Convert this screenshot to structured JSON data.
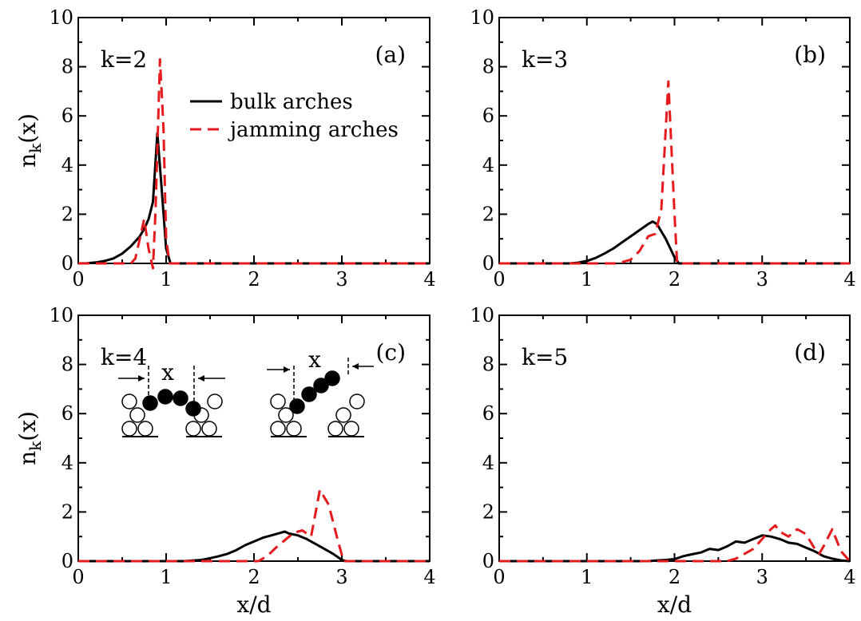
{
  "colors": {
    "bulk": "#000000",
    "jamming": "#e41a1c"
  },
  "legend": {
    "bulk": "bulk arches",
    "jamming": "jamming arches"
  },
  "inset": {
    "x_label_left": "x",
    "x_label_right": "x"
  },
  "chart_data": [
    {
      "type": "line",
      "panel": "(a)",
      "k_label": "k=2",
      "xlabel": "",
      "ylabel": "n_k(x)",
      "xlim": [
        0,
        4
      ],
      "ylim": [
        0,
        10
      ],
      "xticks": [
        "0",
        "1",
        "2",
        "3",
        "4"
      ],
      "yticks": [
        "0",
        "2",
        "4",
        "6",
        "8",
        "10"
      ],
      "series": [
        {
          "name": "bulk arches",
          "style": "solid",
          "x": [
            0,
            0.1,
            0.2,
            0.3,
            0.4,
            0.5,
            0.6,
            0.7,
            0.75,
            0.8,
            0.85,
            0.9,
            0.95,
            1.0,
            1.05,
            1.5,
            2.0,
            2.5,
            3.0,
            3.5,
            4.0
          ],
          "y": [
            0,
            0.01,
            0.04,
            0.1,
            0.2,
            0.4,
            0.7,
            1.1,
            1.4,
            1.8,
            2.5,
            5.3,
            3.0,
            0.6,
            0,
            0,
            0,
            0,
            0,
            0,
            0
          ]
        },
        {
          "name": "jamming arches",
          "style": "dashed",
          "x": [
            0,
            0.6,
            0.65,
            0.7,
            0.75,
            0.8,
            0.85,
            0.88,
            0.93,
            0.97,
            1.0,
            1.04,
            1.5,
            2.0,
            2.5,
            3.0,
            3.5,
            4.0
          ],
          "y": [
            0,
            0,
            0.2,
            1.0,
            1.8,
            0.6,
            -0.2,
            2.2,
            8.3,
            5.5,
            1.0,
            0,
            0,
            0,
            0,
            0,
            0,
            0
          ]
        }
      ]
    },
    {
      "type": "line",
      "panel": "(b)",
      "k_label": "k=3",
      "xlabel": "",
      "ylabel": "",
      "xlim": [
        0,
        4
      ],
      "ylim": [
        0,
        10
      ],
      "xticks": [
        "0",
        "1",
        "2",
        "3",
        "4"
      ],
      "yticks": [
        "0",
        "2",
        "4",
        "6",
        "8",
        "10"
      ],
      "series": [
        {
          "name": "bulk arches",
          "style": "solid",
          "x": [
            0,
            0.8,
            0.9,
            1.0,
            1.1,
            1.2,
            1.3,
            1.4,
            1.5,
            1.6,
            1.7,
            1.75,
            1.8,
            1.9,
            2.0,
            2.05,
            2.5,
            3.0,
            3.5,
            4.0
          ],
          "y": [
            0,
            0,
            0.03,
            0.1,
            0.22,
            0.4,
            0.6,
            0.85,
            1.1,
            1.35,
            1.6,
            1.7,
            1.6,
            1.0,
            0.25,
            0,
            0,
            0,
            0,
            0
          ]
        },
        {
          "name": "jamming arches",
          "style": "dashed",
          "x": [
            0,
            1.35,
            1.5,
            1.6,
            1.7,
            1.78,
            1.85,
            1.93,
            2.0,
            2.03,
            2.5,
            3.0,
            3.5,
            4.0
          ],
          "y": [
            0,
            0,
            0.15,
            0.5,
            1.1,
            1.2,
            2.2,
            7.4,
            2.0,
            0,
            0,
            0,
            0,
            0
          ]
        }
      ]
    },
    {
      "type": "line",
      "panel": "(c)",
      "k_label": "k=4",
      "xlabel": "x/d",
      "ylabel": "n_k(x)",
      "xlim": [
        0,
        4
      ],
      "ylim": [
        0,
        10
      ],
      "xticks": [
        "0",
        "1",
        "2",
        "3",
        "4"
      ],
      "yticks": [
        "0",
        "2",
        "4",
        "6",
        "8",
        "10"
      ],
      "series": [
        {
          "name": "bulk arches",
          "style": "solid",
          "x": [
            0,
            1.2,
            1.4,
            1.5,
            1.6,
            1.7,
            1.8,
            1.9,
            2.0,
            2.1,
            2.2,
            2.3,
            2.35,
            2.4,
            2.5,
            2.6,
            2.7,
            2.8,
            2.9,
            3.0,
            3.05,
            3.5,
            4.0
          ],
          "y": [
            0,
            0,
            0.05,
            0.12,
            0.2,
            0.3,
            0.45,
            0.65,
            0.8,
            0.95,
            1.05,
            1.15,
            1.2,
            1.12,
            1.05,
            0.9,
            0.7,
            0.5,
            0.3,
            0.05,
            0,
            0,
            0
          ]
        },
        {
          "name": "jamming arches",
          "style": "dashed",
          "x": [
            0,
            2.05,
            2.15,
            2.25,
            2.35,
            2.45,
            2.55,
            2.65,
            2.75,
            2.85,
            2.95,
            3.02,
            3.5,
            4.0
          ],
          "y": [
            0,
            0,
            0.2,
            0.55,
            0.85,
            1.15,
            1.25,
            1.0,
            2.9,
            2.3,
            0.9,
            0,
            0,
            0
          ]
        }
      ]
    },
    {
      "type": "line",
      "panel": "(d)",
      "k_label": "k=5",
      "xlabel": "x/d",
      "ylabel": "",
      "xlim": [
        0,
        4
      ],
      "ylim": [
        0,
        10
      ],
      "xticks": [
        "0",
        "1",
        "2",
        "3",
        "4"
      ],
      "yticks": [
        "0",
        "2",
        "4",
        "6",
        "8",
        "10"
      ],
      "series": [
        {
          "name": "bulk arches",
          "style": "solid",
          "x": [
            0,
            1.7,
            1.8,
            1.9,
            2.0,
            2.1,
            2.2,
            2.3,
            2.4,
            2.5,
            2.6,
            2.7,
            2.8,
            2.9,
            3.0,
            3.1,
            3.2,
            3.3,
            3.4,
            3.5,
            3.6,
            3.7,
            3.8,
            3.9,
            4.0
          ],
          "y": [
            0,
            0,
            0.03,
            0.05,
            0.08,
            0.2,
            0.28,
            0.35,
            0.5,
            0.45,
            0.6,
            0.8,
            0.75,
            0.9,
            1.05,
            1.0,
            0.9,
            0.75,
            0.7,
            0.55,
            0.4,
            0.2,
            0.1,
            0.03,
            0
          ]
        },
        {
          "name": "jamming arches",
          "style": "dashed",
          "x": [
            0,
            2.6,
            2.7,
            2.8,
            2.9,
            3.0,
            3.1,
            3.15,
            3.2,
            3.3,
            3.4,
            3.5,
            3.6,
            3.65,
            3.7,
            3.8,
            3.9,
            4.0
          ],
          "y": [
            0,
            0,
            0.1,
            0.3,
            0.5,
            0.9,
            1.3,
            1.45,
            1.2,
            1.0,
            1.3,
            1.1,
            0.5,
            0.3,
            0.6,
            1.3,
            0.4,
            0
          ]
        }
      ]
    }
  ]
}
